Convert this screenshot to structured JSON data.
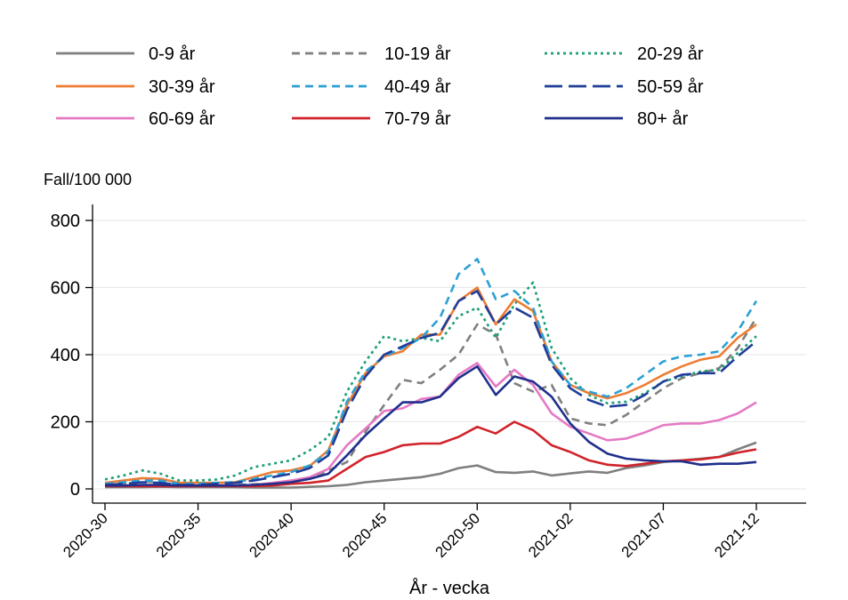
{
  "chart_data": {
    "type": "line",
    "ylabel": "Fall/100 000",
    "xlabel": "År - vecka",
    "ylim": [
      0,
      800
    ],
    "yticks": [
      0,
      200,
      400,
      600,
      800
    ],
    "xlim": [
      0,
      36
    ],
    "grid": true,
    "legend_position": "top",
    "x": [
      0,
      1,
      2,
      3,
      4,
      5,
      6,
      7,
      8,
      9,
      10,
      11,
      12,
      13,
      14,
      15,
      16,
      17,
      18,
      19,
      20,
      21,
      22,
      23,
      24,
      25,
      26,
      27,
      28,
      29,
      30,
      31,
      32,
      33,
      34,
      35
    ],
    "x_tick_labels": [
      "2020-30",
      "2020-35",
      "2020-40",
      "2020-45",
      "2020-50",
      "2021-02",
      "2021-07",
      "2021-12"
    ],
    "x_tick_positions": [
      0,
      5,
      10,
      15,
      20,
      25,
      30,
      35
    ],
    "series": [
      {
        "name": "0-9 år",
        "color": "#7f7f7f",
        "dash": "solid",
        "values": [
          5,
          5,
          5,
          6,
          5,
          5,
          5,
          5,
          4,
          4,
          4,
          6,
          8,
          12,
          20,
          25,
          30,
          35,
          45,
          62,
          70,
          50,
          48,
          52,
          40,
          46,
          52,
          48,
          62,
          70,
          80,
          85,
          90,
          95,
          118,
          138
        ]
      },
      {
        "name": "10-19 år",
        "color": "#7f7f7f",
        "dash": "dash",
        "values": [
          12,
          15,
          22,
          20,
          12,
          10,
          8,
          12,
          14,
          15,
          25,
          30,
          55,
          80,
          170,
          250,
          325,
          315,
          355,
          400,
          490,
          460,
          315,
          290,
          310,
          210,
          195,
          190,
          220,
          260,
          300,
          330,
          345,
          360,
          420,
          510
        ]
      },
      {
        "name": "20-29 år",
        "color": "#1b9e77",
        "dash": "dot",
        "values": [
          28,
          40,
          55,
          45,
          25,
          25,
          28,
          40,
          65,
          75,
          85,
          115,
          155,
          290,
          380,
          455,
          440,
          450,
          440,
          515,
          540,
          450,
          550,
          615,
          420,
          330,
          280,
          255,
          260,
          285,
          320,
          335,
          350,
          355,
          405,
          455
        ]
      },
      {
        "name": "30-39 år",
        "color": "#ed7d31",
        "dash": "solid",
        "values": [
          18,
          25,
          32,
          30,
          18,
          18,
          18,
          20,
          35,
          50,
          55,
          68,
          115,
          250,
          345,
          395,
          410,
          460,
          460,
          560,
          600,
          490,
          565,
          530,
          380,
          310,
          285,
          270,
          285,
          310,
          340,
          365,
          385,
          395,
          450,
          490
        ]
      },
      {
        "name": "40-49 år",
        "color": "#2ca0d4",
        "dash": "dash",
        "values": [
          15,
          20,
          25,
          25,
          15,
          15,
          18,
          20,
          30,
          40,
          50,
          70,
          110,
          260,
          350,
          395,
          420,
          450,
          510,
          640,
          685,
          565,
          590,
          540,
          380,
          310,
          290,
          275,
          300,
          340,
          380,
          395,
          400,
          410,
          470,
          560
        ]
      },
      {
        "name": "50-59 år",
        "color": "#1f3d99",
        "dash": "longdash",
        "values": [
          12,
          15,
          20,
          18,
          12,
          12,
          15,
          18,
          25,
          35,
          45,
          62,
          100,
          235,
          335,
          400,
          425,
          450,
          465,
          560,
          590,
          490,
          540,
          510,
          370,
          300,
          265,
          245,
          250,
          280,
          320,
          340,
          345,
          345,
          395,
          440
        ]
      },
      {
        "name": "60-69 år",
        "color": "#e57ac3",
        "dash": "solid",
        "values": [
          8,
          10,
          10,
          10,
          8,
          8,
          10,
          10,
          12,
          18,
          25,
          35,
          60,
          130,
          180,
          232,
          240,
          268,
          275,
          340,
          375,
          305,
          355,
          310,
          225,
          185,
          165,
          145,
          150,
          168,
          190,
          195,
          195,
          205,
          225,
          258
        ]
      },
      {
        "name": "70-79 år",
        "color": "#d1232a",
        "dash": "solid",
        "values": [
          8,
          8,
          8,
          8,
          8,
          8,
          8,
          8,
          8,
          10,
          15,
          18,
          25,
          60,
          95,
          110,
          130,
          135,
          135,
          155,
          185,
          165,
          200,
          175,
          130,
          110,
          85,
          72,
          68,
          75,
          82,
          85,
          88,
          95,
          108,
          118
        ]
      },
      {
        "name": "80+ år",
        "color": "#1f2f8c",
        "dash": "solid",
        "values": [
          10,
          10,
          12,
          12,
          10,
          10,
          10,
          10,
          12,
          15,
          20,
          30,
          45,
          100,
          160,
          210,
          258,
          258,
          275,
          330,
          365,
          280,
          335,
          320,
          275,
          195,
          140,
          105,
          90,
          85,
          82,
          82,
          72,
          75,
          75,
          80
        ]
      }
    ]
  }
}
